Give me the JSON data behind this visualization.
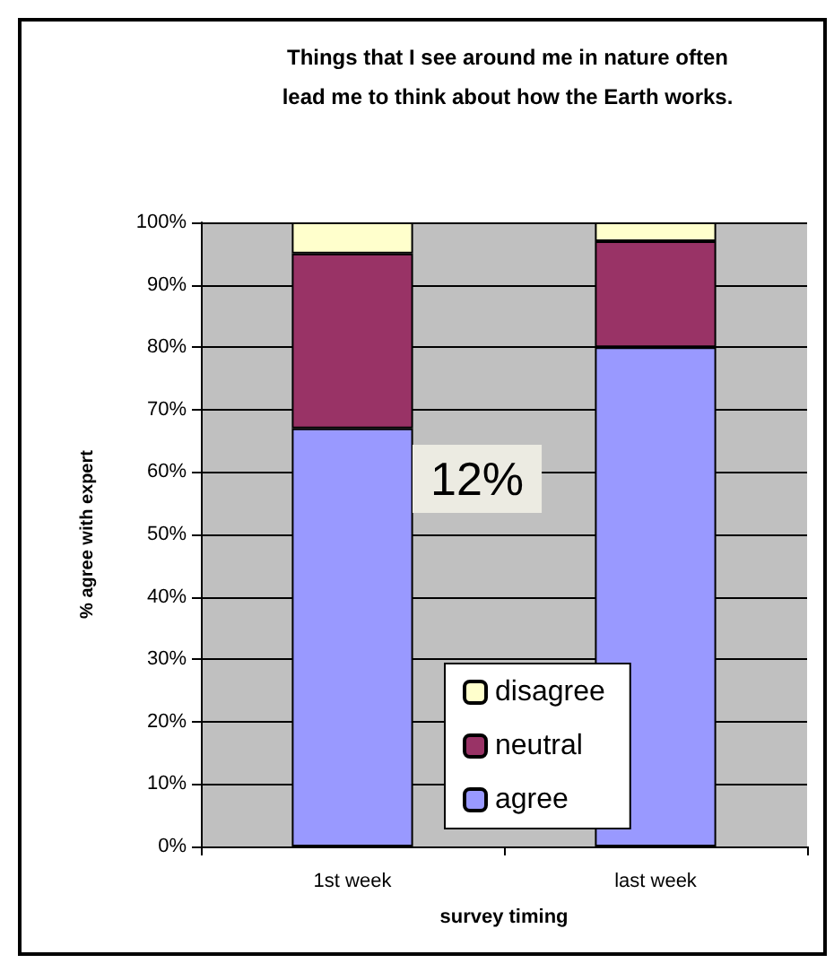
{
  "chart_data": {
    "type": "bar",
    "title": "Things that I see around me in nature often\nlead me to think about how the Earth works.",
    "xlabel": "survey timing",
    "ylabel": "% agree with expert",
    "categories": [
      "1st week",
      "last week"
    ],
    "stacked": true,
    "series": [
      {
        "name": "agree",
        "color": "#9999ff",
        "values": [
          67,
          80
        ]
      },
      {
        "name": "neutral",
        "color": "#993366",
        "values": [
          28,
          17
        ]
      },
      {
        "name": "disagree",
        "color": "#ffffcc",
        "values": [
          5,
          3
        ]
      }
    ],
    "ylim": [
      0,
      100
    ],
    "yticks": [
      {
        "value": 0,
        "label": "0%"
      },
      {
        "value": 10,
        "label": "10%"
      },
      {
        "value": 20,
        "label": "20%"
      },
      {
        "value": 30,
        "label": "30%"
      },
      {
        "value": 40,
        "label": "40%"
      },
      {
        "value": 50,
        "label": "50%"
      },
      {
        "value": 60,
        "label": "60%"
      },
      {
        "value": 70,
        "label": "70%"
      },
      {
        "value": 80,
        "label": "80%"
      },
      {
        "value": 90,
        "label": "90%"
      },
      {
        "value": 100,
        "label": "100%"
      }
    ],
    "grid": "y",
    "legend": "bottom",
    "annotations": [
      "12%"
    ]
  }
}
